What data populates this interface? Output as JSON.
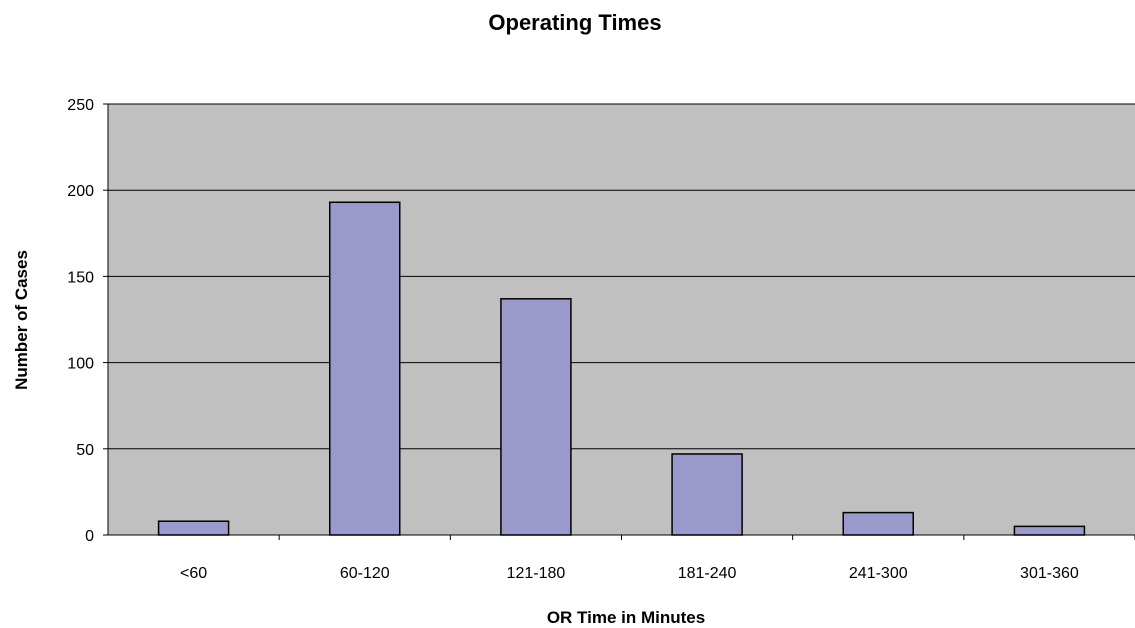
{
  "chart_data": {
    "type": "bar",
    "title": "Operating Times",
    "xlabel": "OR Time in Minutes",
    "ylabel": "Number of Cases",
    "categories": [
      "<60",
      "60-120",
      "121-180",
      "181-240",
      "241-300",
      "301-360"
    ],
    "values": [
      8,
      193,
      137,
      47,
      13,
      5
    ],
    "ylim": [
      0,
      250
    ],
    "yticks": [
      0,
      50,
      100,
      150,
      200,
      250
    ],
    "grid": true,
    "legend": "none",
    "colors": {
      "bar_fill": "#9999cc",
      "bar_stroke": "#000000",
      "plot_background": "#c0c0c0",
      "gridline": "#000000"
    }
  }
}
